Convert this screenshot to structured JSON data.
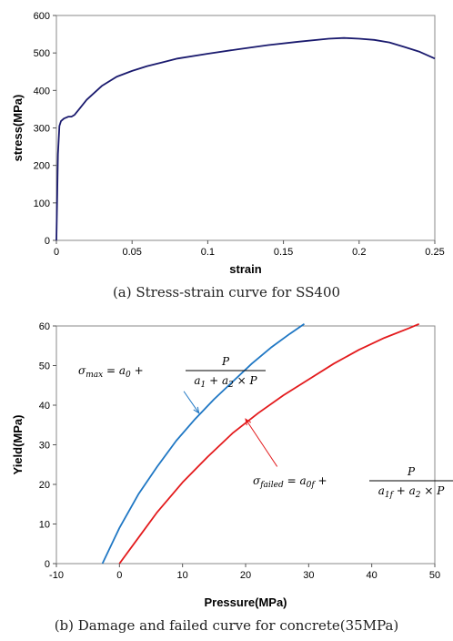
{
  "chart_data": [
    {
      "type": "line",
      "caption": "(a) Stress-strain curve for SS400",
      "xlabel": "strain",
      "ylabel": "stress(MPa)",
      "xlim": [
        0,
        0.25
      ],
      "ylim": [
        0,
        600
      ],
      "xticks": [
        "0",
        "0.05",
        "0.1",
        "0.15",
        "0.2",
        "0.25"
      ],
      "yticks": [
        "0",
        "100",
        "200",
        "300",
        "400",
        "500",
        "600"
      ],
      "grid": false,
      "colors": {
        "line": "#1a1a6e"
      },
      "series": [
        {
          "x": [
            0,
            0.001,
            0.002,
            0.003,
            0.005,
            0.008,
            0.01,
            0.012,
            0.015,
            0.02,
            0.03,
            0.04,
            0.05,
            0.06,
            0.07,
            0.08,
            0.1,
            0.12,
            0.14,
            0.16,
            0.18,
            0.19,
            0.2,
            0.21,
            0.22,
            0.23,
            0.24,
            0.25
          ],
          "y": [
            0,
            230,
            305,
            318,
            325,
            330,
            330,
            335,
            350,
            375,
            412,
            437,
            452,
            465,
            475,
            485,
            498,
            510,
            521,
            530,
            538,
            540,
            538,
            535,
            528,
            516,
            503,
            485
          ]
        }
      ]
    },
    {
      "type": "line",
      "caption": "(b) Damage and failed curve for concrete(35MPa)",
      "xlabel": "Pressure(MPa)",
      "ylabel": "Yield(MPa)",
      "xlim": [
        -10,
        50
      ],
      "ylim": [
        0,
        60
      ],
      "xticks": [
        "-10",
        "0",
        "10",
        "20",
        "30",
        "40",
        "50"
      ],
      "yticks": [
        "0",
        "10",
        "20",
        "30",
        "40",
        "50",
        "60"
      ],
      "grid": false,
      "colors": {
        "max": "#1f77c4",
        "failed": "#e31a1c"
      },
      "series": [
        {
          "name": "max",
          "x": [
            -2.7,
            0,
            3,
            6,
            9,
            12,
            15,
            18,
            21,
            24,
            27,
            29.3
          ],
          "y": [
            0,
            9,
            17.5,
            24.5,
            31,
            36.5,
            41.5,
            46,
            50.5,
            54.5,
            58,
            60.5
          ]
        },
        {
          "name": "failed",
          "x": [
            0,
            3,
            6,
            10,
            14,
            18,
            22,
            26,
            30,
            34,
            38,
            42,
            46,
            47.5
          ],
          "y": [
            0,
            6.5,
            13,
            20.5,
            27,
            33,
            38,
            42.5,
            46.5,
            50.5,
            54,
            57,
            59.5,
            60.5
          ]
        }
      ],
      "annotations": [
        {
          "id": "max",
          "lhs": "σ",
          "lhs_sub": "max",
          "rhs_a": "a",
          "rhs_a_sub": "0",
          "num": "P",
          "den_a": "a",
          "den_a_sub": "1",
          "den_b": "a",
          "den_b_sub": "2",
          "times": "×",
          "den_p": "P",
          "eq": "=",
          "plus": "+",
          "den_plus": "+",
          "arrow_from": [
            10.2,
            43.5
          ],
          "arrow_to": [
            12.6,
            38
          ]
        },
        {
          "id": "failed",
          "lhs": "σ",
          "lhs_sub": "failed",
          "rhs_a": "a",
          "rhs_a_sub": "0f",
          "num": "P",
          "den_a": "a",
          "den_a_sub": "1f",
          "den_b": "a",
          "den_b_sub": "2",
          "times": "×",
          "den_p": "P",
          "eq": "=",
          "plus": "+",
          "den_plus": "+",
          "arrow_from": [
            25,
            24.5
          ],
          "arrow_to": [
            20,
            36.5
          ]
        }
      ]
    }
  ]
}
